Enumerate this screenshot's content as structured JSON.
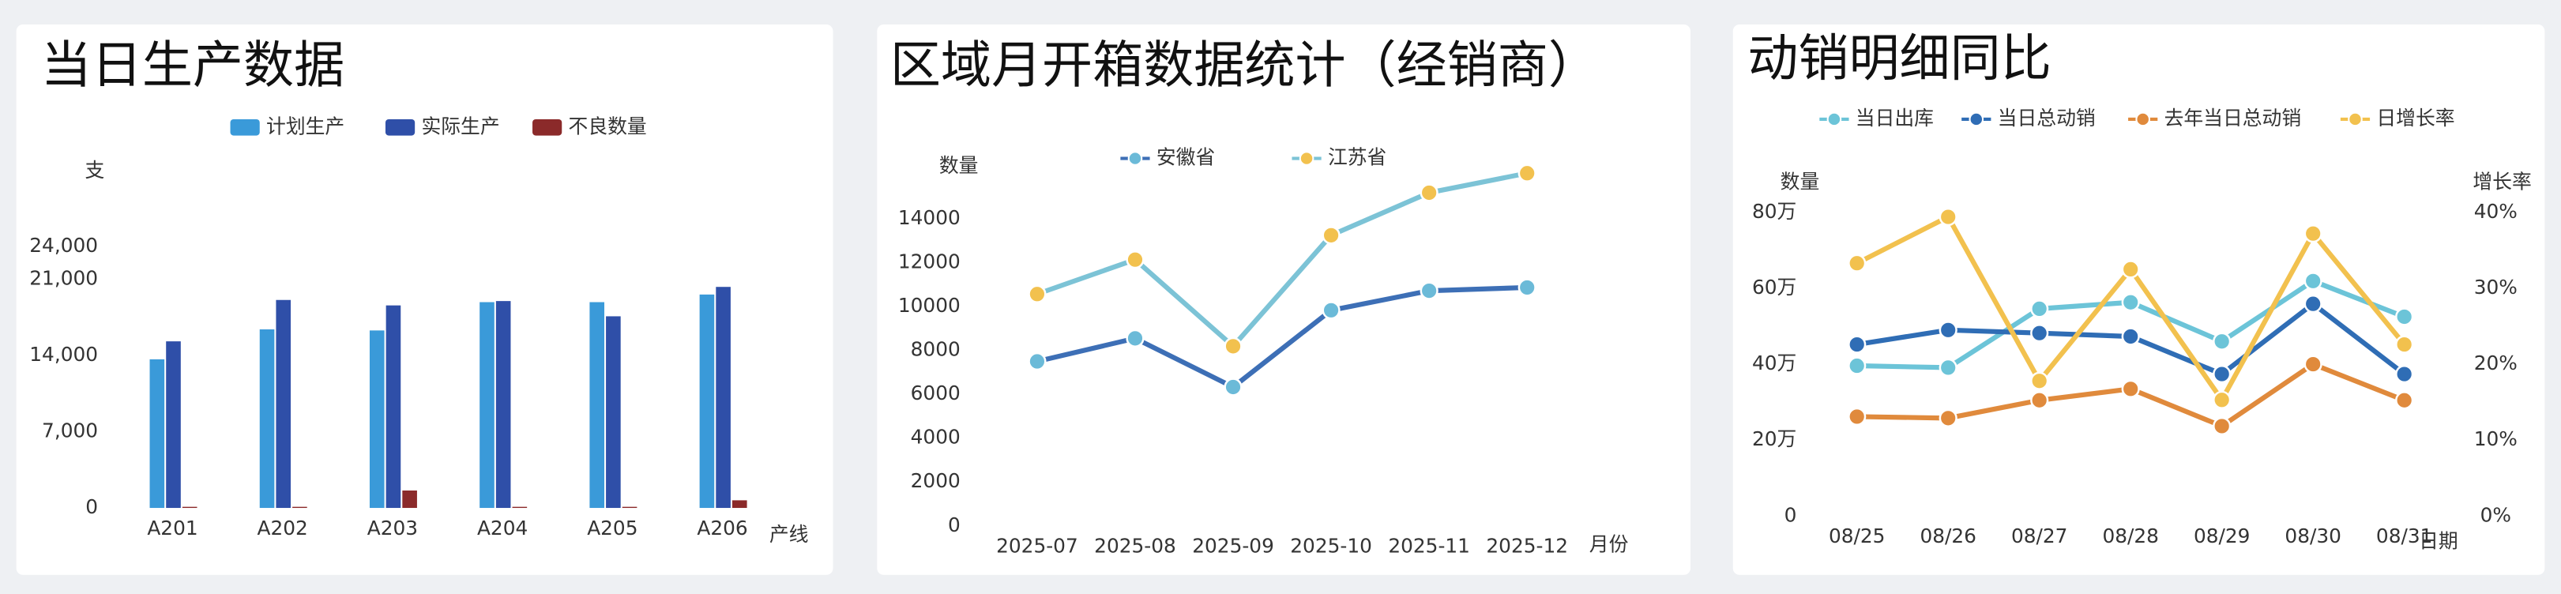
{
  "chart_data": [
    {
      "type": "bar",
      "title": "当日生产数据",
      "y_unit": "支",
      "x_label": "产线",
      "categories": [
        "A201",
        "A202",
        "A203",
        "A204",
        "A205",
        "A206"
      ],
      "series": [
        {
          "name": "计划生产",
          "color": "#3a9ad9",
          "values": [
            13650,
            16400,
            16300,
            18900,
            18900,
            19600
          ]
        },
        {
          "name": "实际生产",
          "color": "#2f4fa8",
          "values": [
            15300,
            19100,
            18600,
            19000,
            17600,
            20300
          ]
        },
        {
          "name": "不良数量",
          "color": "#8b2a2a",
          "values": [
            100,
            100,
            1600,
            100,
            100,
            700
          ]
        }
      ],
      "ylim": [
        0,
        24000
      ],
      "yticks": [
        0,
        {
          "value": 7000,
          "label": "7,000"
        },
        {
          "value": 14000,
          "label": "14,000"
        },
        {
          "value": 21000,
          "label": "21,000"
        },
        {
          "value": 24000,
          "label": "24,000"
        }
      ],
      "grid": false
    },
    {
      "type": "line",
      "title": "区域月开箱数据统计（经销商）",
      "y_label": "数量",
      "x_label": "月份",
      "categories": [
        "2025-07",
        "2025-08",
        "2025-09",
        "2025-10",
        "2025-11",
        "2025-12"
      ],
      "series": [
        {
          "name": "安徽省",
          "color": "#3d6fb6",
          "marker_color": "#6bbad8",
          "values": [
            7500,
            8550,
            6330,
            9830,
            10720,
            10870
          ]
        },
        {
          "name": "江苏省",
          "color": "#7cc3d6",
          "marker_color": "#f2c14e",
          "values": [
            10570,
            12140,
            8190,
            13250,
            15190,
            16080
          ]
        }
      ],
      "ylim": [
        0,
        16500
      ],
      "yticks": [
        0,
        2000,
        4000,
        6000,
        8000,
        10000,
        12000,
        14000
      ],
      "grid": false
    },
    {
      "type": "line",
      "title": "动销明细同比",
      "y_label": "数量",
      "y2_label": "增长率",
      "x_label": "日期",
      "categories": [
        "08/25",
        "08/26",
        "08/27",
        "08/28",
        "08/29",
        "08/30",
        "08/31"
      ],
      "series": [
        {
          "name": "当日出库",
          "color": "#6cc4d8",
          "marker_color": "#6cc4d8",
          "values": [
            396000,
            391000,
            546000,
            563000,
            460000,
            619000,
            525000
          ]
        },
        {
          "name": "当日总动销",
          "color": "#2f6db5",
          "marker_color": "#2f6db5",
          "values": [
            452000,
            490000,
            482000,
            473000,
            374000,
            559000,
            374000
          ]
        },
        {
          "name": "去年当日总动销",
          "color": "#e08a3c",
          "marker_color": "#e08a3c",
          "values": [
            262000,
            258000,
            305000,
            335000,
            237000,
            400000,
            305000
          ]
        },
        {
          "name": "日增长率",
          "color": "#f2c14e",
          "marker_color": "#f2c14e",
          "axis": "y2",
          "values": [
            33.3,
            39.4,
            17.8,
            32.5,
            15.3,
            37.2,
            22.6
          ]
        }
      ],
      "ylim": [
        0,
        800000
      ],
      "yticks": [
        0,
        {
          "value": 200000,
          "label": "20万"
        },
        {
          "value": 400000,
          "label": "40万"
        },
        {
          "value": 600000,
          "label": "60万"
        },
        {
          "value": 800000,
          "label": "80万"
        }
      ],
      "y2lim": [
        0,
        40
      ],
      "y2ticks": [
        {
          "value": 0,
          "label": "0%"
        },
        {
          "value": 10,
          "label": "10%"
        },
        {
          "value": 20,
          "label": "20%"
        },
        {
          "value": 30,
          "label": "30%"
        },
        {
          "value": 40,
          "label": "40%"
        }
      ],
      "grid": false
    }
  ]
}
